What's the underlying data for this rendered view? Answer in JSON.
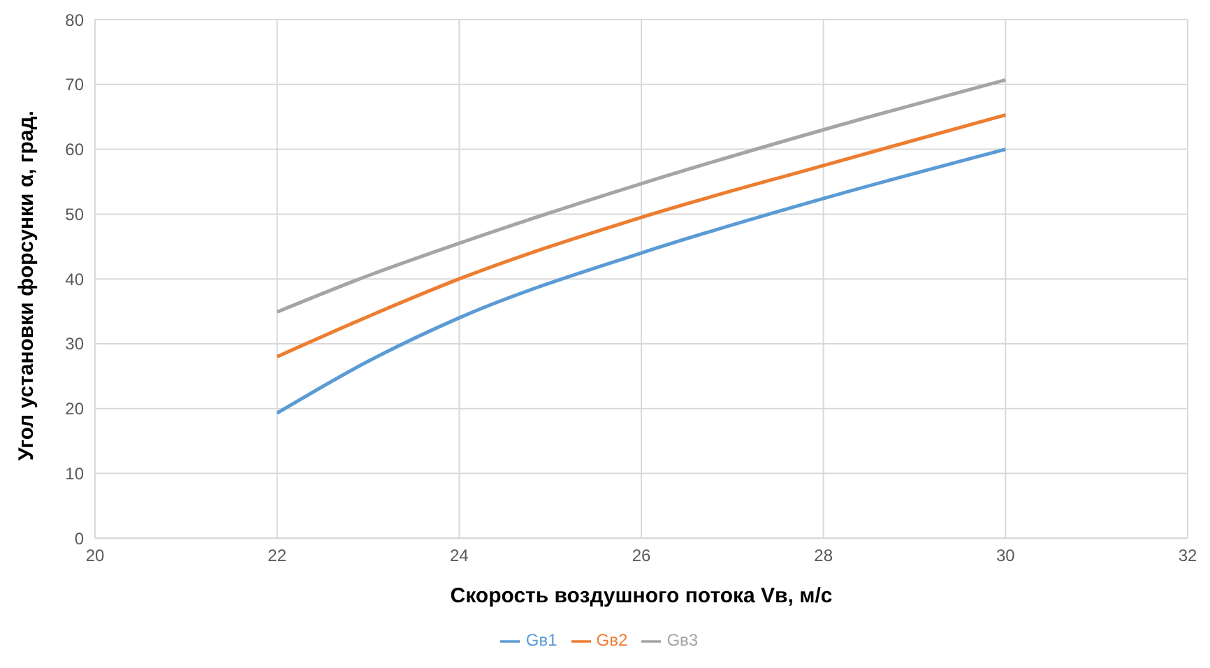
{
  "chart_data": {
    "type": "line",
    "xlabel": "Скорость воздушного потока Vв, м/с",
    "ylabel": "Угол установки форсунки α, град.",
    "x": [
      22,
      23,
      24,
      26,
      28,
      30
    ],
    "series": [
      {
        "name": "Gв1",
        "color": "#5b9bd5",
        "values": [
          19.3,
          27.3,
          34,
          44,
          52.4,
          60
        ]
      },
      {
        "name": "Gв2",
        "color": "#ed7d31",
        "values": [
          28,
          34.2,
          40,
          49.5,
          57.5,
          65.3
        ]
      },
      {
        "name": "Gв3",
        "color": "#a5a5a5",
        "values": [
          34.9,
          40.5,
          45.5,
          54.7,
          63,
          70.7
        ]
      }
    ],
    "xlim": [
      20,
      32
    ],
    "xticks": [
      20,
      22,
      24,
      26,
      28,
      30,
      32
    ],
    "ylim": [
      0,
      80
    ],
    "yticks": [
      0,
      10,
      20,
      30,
      40,
      50,
      60,
      70,
      80
    ],
    "grid": true,
    "legend": "bottom",
    "marker": "none",
    "line_style": "solid"
  }
}
